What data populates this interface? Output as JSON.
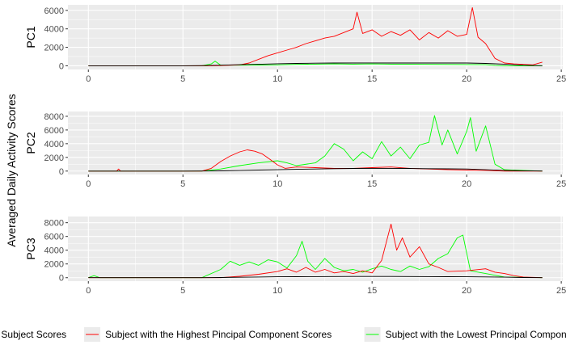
{
  "chart_data": {
    "type": "line",
    "ylabel": "Averaged Daily Activity Scores",
    "xlim": [
      0,
      24
    ],
    "x_ticks": [
      0,
      5,
      10,
      15,
      20,
      25
    ],
    "grid": true,
    "legend_position": "bottom",
    "colors": {
      "panel_bg": "#ebebeb",
      "grid": "#ffffff",
      "tick_text": "#4d4d4d",
      "averaged": "#000000",
      "highest": "#ff0000",
      "lowest": "#00ff00"
    },
    "legend": [
      {
        "label": "Averaged Subject Scores",
        "color": "#000000"
      },
      {
        "label": "Subject with the Highest Pincipal Component Scores",
        "color": "#ff0000"
      },
      {
        "label": "Subject with the Lowest Principal Component Scores",
        "color": "#00ff00"
      }
    ],
    "panels": [
      {
        "strip": "PC1",
        "ylim": [
          -400,
          6600
        ],
        "y_ticks": [
          0,
          2000,
          4000,
          6000
        ],
        "series": [
          {
            "name": "Averaged Subject Scores",
            "color": "#000000",
            "x": [
              0,
              5,
              6,
              7,
              8,
              9,
              10,
              11,
              12,
              13,
              14,
              15,
              16,
              17,
              18,
              19,
              20,
              21,
              22,
              23,
              24
            ],
            "y": [
              0,
              0,
              20,
              60,
              120,
              160,
              220,
              260,
              280,
              300,
              300,
              310,
              300,
              300,
              300,
              300,
              300,
              260,
              180,
              60,
              10
            ]
          },
          {
            "name": "Subject with the Highest Pincipal Component Scores",
            "color": "#ff0000",
            "x": [
              0,
              6.5,
              7,
              8,
              8.5,
              9,
              9.5,
              10,
              10.5,
              11,
              11.5,
              12,
              12.5,
              13,
              13.5,
              14,
              14.2,
              14.5,
              15,
              15.5,
              16,
              16.5,
              17,
              17.5,
              18,
              18.5,
              19,
              19.5,
              20,
              20.3,
              20.6,
              21,
              21.5,
              22,
              22.5,
              23,
              23.5,
              24
            ],
            "y": [
              0,
              0,
              20,
              100,
              300,
              700,
              1100,
              1400,
              1700,
              2000,
              2400,
              2700,
              3000,
              3200,
              3600,
              4000,
              5800,
              3500,
              3900,
              3200,
              3700,
              3300,
              3900,
              2800,
              3600,
              3000,
              3800,
              3200,
              3400,
              6300,
              3100,
              2400,
              800,
              300,
              200,
              150,
              100,
              400
            ]
          },
          {
            "name": "Subject with the Lowest Principal Component Scores",
            "color": "#00ff00",
            "x": [
              0,
              6,
              6.5,
              6.7,
              7,
              8,
              9,
              10,
              11,
              12,
              13,
              14,
              15,
              16,
              17,
              18,
              19,
              20,
              21,
              21.5,
              22,
              24
            ],
            "y": [
              0,
              0,
              200,
              500,
              60,
              60,
              80,
              100,
              150,
              180,
              200,
              180,
              200,
              180,
              160,
              150,
              140,
              130,
              120,
              50,
              0,
              0
            ]
          }
        ]
      },
      {
        "strip": "PC2",
        "ylim": [
          -500,
          8700
        ],
        "y_ticks": [
          0,
          2000,
          4000,
          6000,
          8000
        ],
        "series": [
          {
            "name": "Averaged Subject Scores",
            "color": "#000000",
            "x": [
              0,
              5,
              6,
              7,
              8,
              9,
              10,
              11,
              12,
              13,
              14,
              15,
              16,
              17,
              18,
              19,
              20,
              21,
              22,
              23,
              24
            ],
            "y": [
              0,
              0,
              10,
              30,
              80,
              150,
              200,
              250,
              300,
              350,
              380,
              400,
              400,
              380,
              350,
              330,
              300,
              200,
              100,
              40,
              10
            ]
          },
          {
            "name": "Subject with the Highest Pincipal Component Scores",
            "color": "#ff0000",
            "x": [
              0,
              1.5,
              1.6,
              1.7,
              6,
              6.5,
              7,
              7.5,
              8,
              8.4,
              8.8,
              9.2,
              9.6,
              10,
              10.4,
              11,
              12,
              13,
              14,
              15,
              16,
              17,
              18,
              19,
              20,
              21,
              22,
              24
            ],
            "y": [
              0,
              0,
              300,
              0,
              0,
              400,
              1400,
              2200,
              2800,
              3100,
              2900,
              2500,
              1700,
              900,
              400,
              600,
              500,
              400,
              400,
              500,
              600,
              400,
              300,
              200,
              150,
              100,
              0,
              0
            ]
          },
          {
            "name": "Subject with the Lowest Principal Component Scores",
            "color": "#00ff00",
            "x": [
              0,
              6,
              7,
              8,
              9,
              10,
              10.5,
              11,
              12,
              12.5,
              13,
              13.5,
              14,
              14.5,
              15,
              15.5,
              16,
              16.5,
              17,
              17.5,
              18,
              18.3,
              18.7,
              19,
              19.5,
              20,
              20.2,
              20.5,
              21,
              21.5,
              22,
              24
            ],
            "y": [
              0,
              0,
              300,
              800,
              1200,
              1500,
              1200,
              800,
              1200,
              2200,
              4000,
              3200,
              1500,
              2800,
              1800,
              4300,
              2200,
              3500,
              1800,
              3800,
              4200,
              8100,
              3800,
              6000,
              2500,
              5800,
              7800,
              2900,
              6600,
              1000,
              200,
              0
            ]
          }
        ]
      },
      {
        "strip": "PC3",
        "ylim": [
          -500,
          8900
        ],
        "y_ticks": [
          0,
          2000,
          4000,
          6000,
          8000
        ],
        "series": [
          {
            "name": "Averaged Subject Scores",
            "color": "#000000",
            "x": [
              0,
              5,
              6,
              7,
              8,
              9,
              10,
              11,
              12,
              13,
              14,
              15,
              16,
              17,
              18,
              19,
              20,
              21,
              22,
              23,
              24
            ],
            "y": [
              0,
              0,
              10,
              30,
              60,
              100,
              130,
              150,
              160,
              170,
              180,
              180,
              180,
              170,
              160,
              150,
              140,
              110,
              70,
              30,
              10
            ]
          },
          {
            "name": "Subject with the Highest Pincipal Component Scores",
            "color": "#ff0000",
            "x": [
              0,
              7,
              8,
              9,
              10,
              10.5,
              11,
              11.5,
              12,
              12.5,
              13,
              13.5,
              14,
              14.5,
              15,
              15.5,
              16,
              16.3,
              16.6,
              17,
              17.5,
              18,
              18.5,
              19,
              20,
              21,
              21.5,
              22,
              22.5,
              23,
              24
            ],
            "y": [
              0,
              0,
              200,
              500,
              900,
              1300,
              800,
              1500,
              800,
              1200,
              700,
              900,
              600,
              1000,
              700,
              2500,
              7800,
              4000,
              5800,
              3000,
              4500,
              2000,
              1500,
              900,
              1000,
              1300,
              800,
              600,
              300,
              100,
              0
            ]
          },
          {
            "name": "Subject with the Lowest Principal Component Scores",
            "color": "#00ff00",
            "x": [
              0,
              0.3,
              0.6,
              6,
              7,
              7.5,
              8,
              8.5,
              9,
              9.5,
              10,
              10.5,
              11,
              11.3,
              11.6,
              12,
              12.5,
              13,
              13.5,
              14,
              14.5,
              15,
              15.5,
              16,
              16.5,
              17,
              17.5,
              18,
              18.5,
              19,
              19.5,
              19.8,
              20.2,
              21,
              22,
              24
            ],
            "y": [
              0,
              300,
              0,
              0,
              1200,
              2400,
              1800,
              2300,
              1800,
              2600,
              2300,
              1400,
              3200,
              5300,
              2400,
              1200,
              2800,
              1500,
              1000,
              1200,
              800,
              1300,
              1700,
              1200,
              900,
              1700,
              1200,
              1600,
              2800,
              3500,
              5800,
              6200,
              1000,
              600,
              100,
              0
            ]
          }
        ]
      }
    ]
  }
}
